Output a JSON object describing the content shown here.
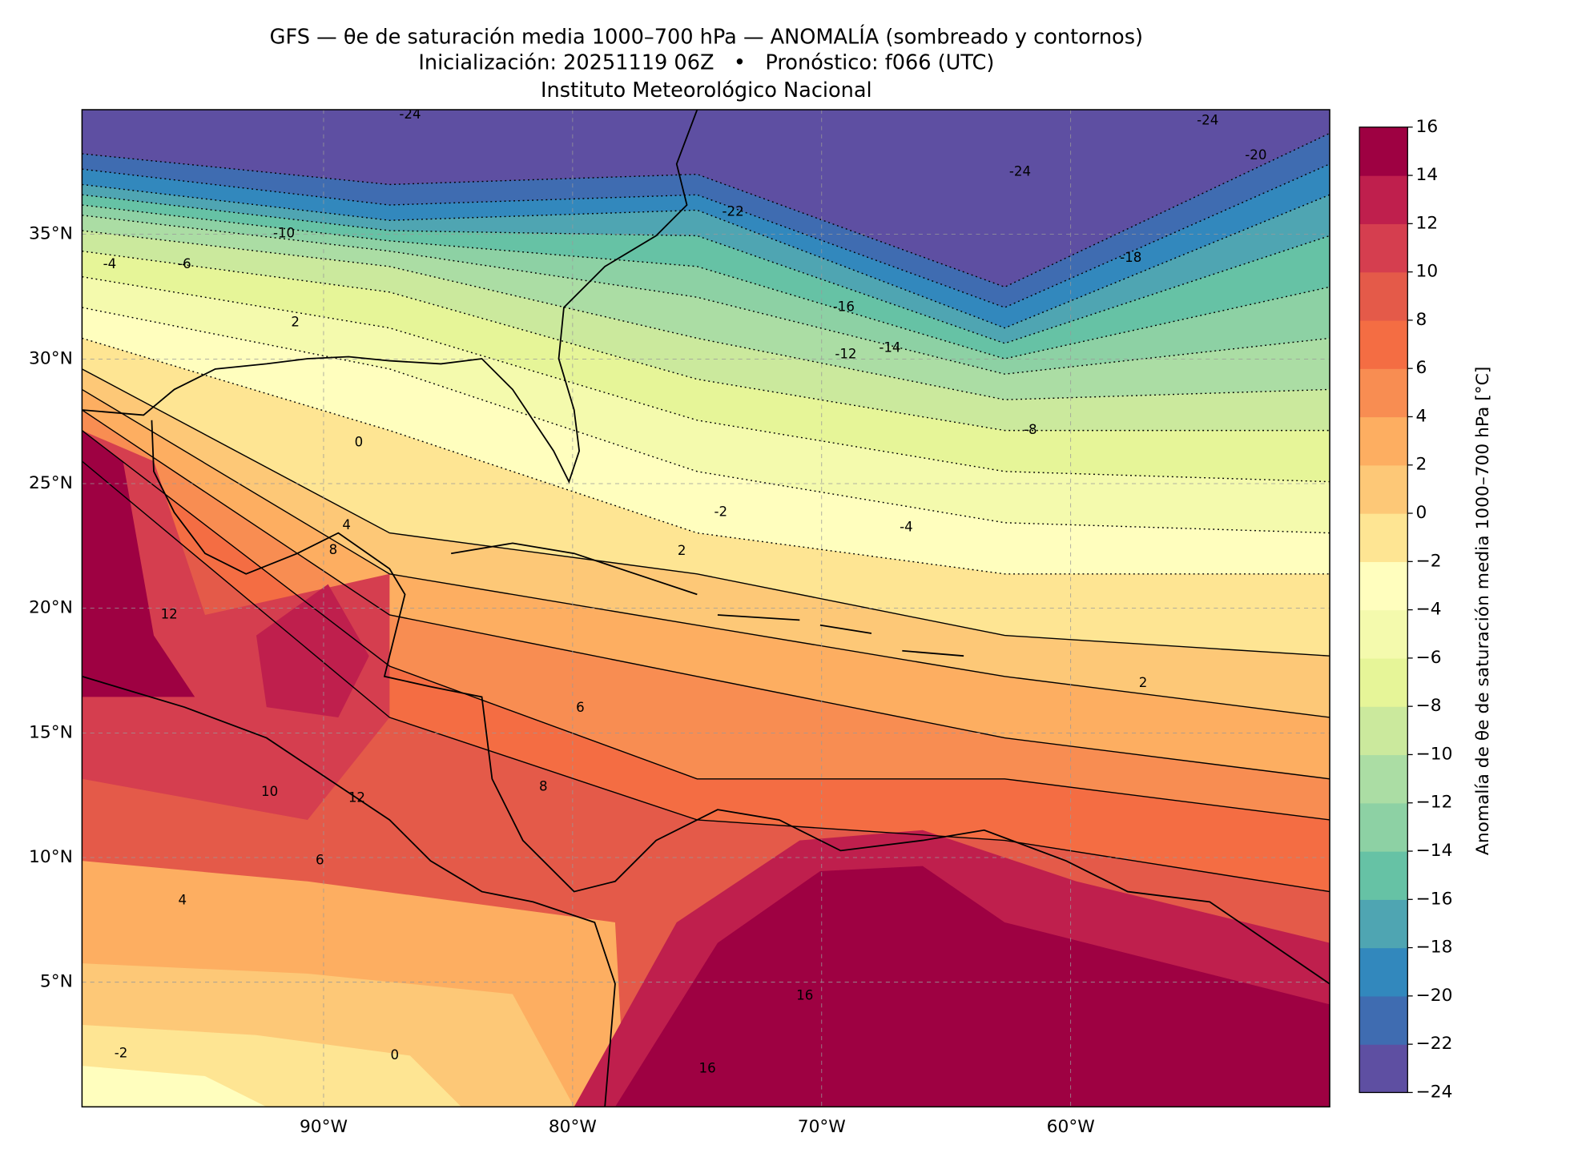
{
  "header": {
    "title": "GFS — θe de saturación media 1000–700 hPa — ANOMALÍA (sombreado y contornos)",
    "subtitle": "Inicialización: 20251119 06Z   •   Pronóstico: f066 (UTC)",
    "institution": "Instituto Meteorológico Nacional"
  },
  "map": {
    "lon_range": [
      -99.7,
      -49.6
    ],
    "lat_range": [
      0,
      40
    ],
    "grid": true,
    "lon_ticks": [
      {
        "value": -90,
        "label": "90°W"
      },
      {
        "value": -80,
        "label": "80°W"
      },
      {
        "value": -70,
        "label": "70°W"
      },
      {
        "value": -60,
        "label": "60°W"
      }
    ],
    "lat_ticks": [
      {
        "value": 5,
        "label": "5°N"
      },
      {
        "value": 10,
        "label": "10°N"
      },
      {
        "value": 15,
        "label": "15°N"
      },
      {
        "value": 20,
        "label": "20°N"
      },
      {
        "value": 25,
        "label": "25°N"
      },
      {
        "value": 30,
        "label": "30°N"
      },
      {
        "value": 35,
        "label": "35°N"
      }
    ],
    "contour_labels": [
      "-24",
      "-24",
      "-24",
      "-22",
      "-20",
      "-18",
      "-16",
      "-14",
      "-12",
      "-10",
      "-8",
      "-6",
      "-4",
      "-4",
      "-2",
      "-2",
      "0",
      "0",
      "2",
      "2",
      "2",
      "4",
      "4",
      "6",
      "6",
      "8",
      "8",
      "10",
      "12",
      "12",
      "16",
      "16"
    ]
  },
  "colorbar": {
    "label": "Anomalía de θe de saturación media 1000–700 hPa [°C]",
    "range": [
      -24,
      16
    ],
    "ticks": [
      {
        "value": -24,
        "label": "−24"
      },
      {
        "value": -22,
        "label": "−22"
      },
      {
        "value": -20,
        "label": "−20"
      },
      {
        "value": -18,
        "label": "−18"
      },
      {
        "value": -16,
        "label": "−16"
      },
      {
        "value": -14,
        "label": "−14"
      },
      {
        "value": -12,
        "label": "−12"
      },
      {
        "value": -10,
        "label": "−10"
      },
      {
        "value": -8,
        "label": "−8"
      },
      {
        "value": -6,
        "label": "−6"
      },
      {
        "value": -4,
        "label": "−4"
      },
      {
        "value": -2,
        "label": "−2"
      },
      0,
      2,
      4,
      6,
      8,
      10,
      12,
      14,
      16
    ],
    "colors": [
      "#5e4fa2",
      "#3f6cb1",
      "#3288bd",
      "#4fa5b2",
      "#66c2a5",
      "#8dd1a4",
      "#abdda4",
      "#cbe99d",
      "#e6f598",
      "#f4faad",
      "#fffebe",
      "#fee593",
      "#fdc877",
      "#fdae61",
      "#f88d52",
      "#f46d43",
      "#e45a49",
      "#d53e4f",
      "#bf1f4d",
      "#9e0142"
    ]
  }
}
